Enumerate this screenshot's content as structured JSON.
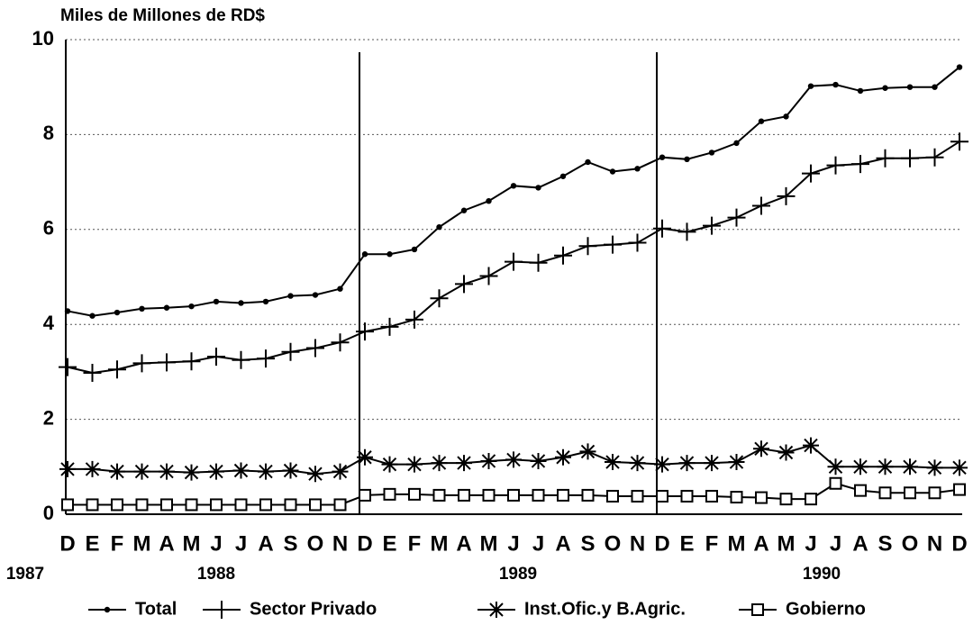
{
  "chart_data": {
    "type": "line",
    "y_label": "Miles de Millones de RD$",
    "categories": [
      "D",
      "E",
      "F",
      "M",
      "A",
      "M",
      "J",
      "J",
      "A",
      "S",
      "O",
      "N",
      "D",
      "E",
      "F",
      "M",
      "A",
      "M",
      "J",
      "J",
      "A",
      "S",
      "O",
      "N",
      "D",
      "E",
      "F",
      "M",
      "A",
      "M",
      "J",
      "J",
      "A",
      "S",
      "O",
      "N",
      "D"
    ],
    "year_labels": [
      "1987",
      "1988",
      "1989",
      "1990"
    ],
    "series": [
      {
        "name": "Total",
        "color": "#000000",
        "marker": "dot",
        "values": [
          4.28,
          4.18,
          4.25,
          4.33,
          4.35,
          4.38,
          4.48,
          4.45,
          4.48,
          4.6,
          4.62,
          4.75,
          5.48,
          5.48,
          5.58,
          6.05,
          6.4,
          6.6,
          6.92,
          6.88,
          7.12,
          7.42,
          7.22,
          7.28,
          7.52,
          7.48,
          7.62,
          7.82,
          8.28,
          8.38,
          9.02,
          9.05,
          8.92,
          8.98,
          9.0,
          9.0,
          9.42
        ]
      },
      {
        "name": "Sector Privado",
        "color": "#000000",
        "marker": "plus",
        "values": [
          3.1,
          2.98,
          3.05,
          3.18,
          3.2,
          3.22,
          3.32,
          3.25,
          3.28,
          3.42,
          3.5,
          3.62,
          3.85,
          3.95,
          4.1,
          4.55,
          4.85,
          5.02,
          5.32,
          5.3,
          5.45,
          5.65,
          5.68,
          5.72,
          6.02,
          5.95,
          6.08,
          6.25,
          6.5,
          6.7,
          7.18,
          7.35,
          7.38,
          7.5,
          7.5,
          7.52,
          7.85
        ]
      },
      {
        "name": "Inst.Ofic.y B.Agric.",
        "color": "#000000",
        "marker": "star",
        "values": [
          0.95,
          0.95,
          0.9,
          0.9,
          0.9,
          0.88,
          0.9,
          0.92,
          0.9,
          0.92,
          0.85,
          0.9,
          1.2,
          1.05,
          1.05,
          1.08,
          1.08,
          1.12,
          1.15,
          1.12,
          1.2,
          1.32,
          1.1,
          1.08,
          1.05,
          1.08,
          1.08,
          1.1,
          1.38,
          1.3,
          1.45,
          1.0,
          1.0,
          1.0,
          1.0,
          0.98,
          0.98
        ]
      },
      {
        "name": "Gobierno",
        "color": "#000000",
        "marker": "square",
        "values": [
          0.2,
          0.2,
          0.2,
          0.2,
          0.2,
          0.2,
          0.2,
          0.2,
          0.2,
          0.2,
          0.2,
          0.2,
          0.4,
          0.42,
          0.42,
          0.4,
          0.4,
          0.4,
          0.4,
          0.4,
          0.4,
          0.4,
          0.38,
          0.38,
          0.38,
          0.38,
          0.38,
          0.36,
          0.35,
          0.32,
          0.32,
          0.65,
          0.5,
          0.45,
          0.45,
          0.45,
          0.52
        ]
      }
    ],
    "ylim": [
      0,
      10
    ],
    "yticks": [
      0,
      2,
      4,
      6,
      8,
      10
    ],
    "grid": true
  }
}
